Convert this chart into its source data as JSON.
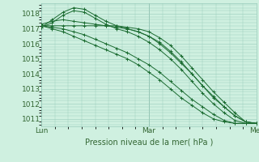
{
  "title": "Pression niveau de la mer( hPa )",
  "background_color": "#cff0e0",
  "grid_color": "#99ccbb",
  "line_color": "#1a6b30",
  "xlim": [
    0,
    96
  ],
  "ylim": [
    1010.5,
    1018.7
  ],
  "yticks": [
    1011,
    1012,
    1013,
    1014,
    1015,
    1016,
    1017,
    1018
  ],
  "xtick_positions": [
    0,
    48,
    96
  ],
  "xtick_labels": [
    "Lun",
    "Mar",
    "Mer"
  ],
  "series": [
    [
      1017.1,
      1017.6,
      1018.1,
      1018.4,
      1018.3,
      1017.9,
      1017.5,
      1017.2,
      1017.0,
      1016.8,
      1016.5,
      1016.1,
      1015.5,
      1014.8,
      1014.0,
      1013.2,
      1012.4,
      1011.8,
      1011.2,
      1010.8,
      1010.7
    ],
    [
      1017.1,
      1017.4,
      1017.9,
      1018.2,
      1018.1,
      1017.7,
      1017.3,
      1017.0,
      1016.8,
      1016.5,
      1016.1,
      1015.6,
      1015.0,
      1014.3,
      1013.5,
      1012.7,
      1012.0,
      1011.4,
      1010.9,
      1010.7,
      1010.7
    ],
    [
      1017.2,
      1017.2,
      1017.2,
      1017.2,
      1017.2,
      1017.2,
      1017.2,
      1017.2,
      1017.1,
      1017.0,
      1016.8,
      1016.4,
      1015.9,
      1015.2,
      1014.4,
      1013.6,
      1012.8,
      1012.1,
      1011.4,
      1010.8,
      1010.7
    ],
    [
      1017.2,
      1017.1,
      1017.0,
      1016.8,
      1016.6,
      1016.3,
      1016.0,
      1015.7,
      1015.4,
      1015.0,
      1014.6,
      1014.1,
      1013.5,
      1012.9,
      1012.3,
      1011.8,
      1011.3,
      1010.9,
      1010.7,
      1010.7,
      1010.7
    ],
    [
      1017.2,
      1017.0,
      1016.8,
      1016.5,
      1016.2,
      1015.9,
      1015.6,
      1015.3,
      1015.0,
      1014.6,
      1014.1,
      1013.6,
      1013.0,
      1012.4,
      1011.9,
      1011.4,
      1011.0,
      1010.8,
      1010.7,
      1010.7,
      1010.7
    ],
    [
      1017.3,
      1017.5,
      1017.6,
      1017.5,
      1017.4,
      1017.3,
      1017.2,
      1017.1,
      1017.0,
      1016.8,
      1016.5,
      1016.0,
      1015.4,
      1014.7,
      1014.0,
      1013.2,
      1012.5,
      1011.8,
      1011.2,
      1010.8,
      1010.7
    ]
  ]
}
